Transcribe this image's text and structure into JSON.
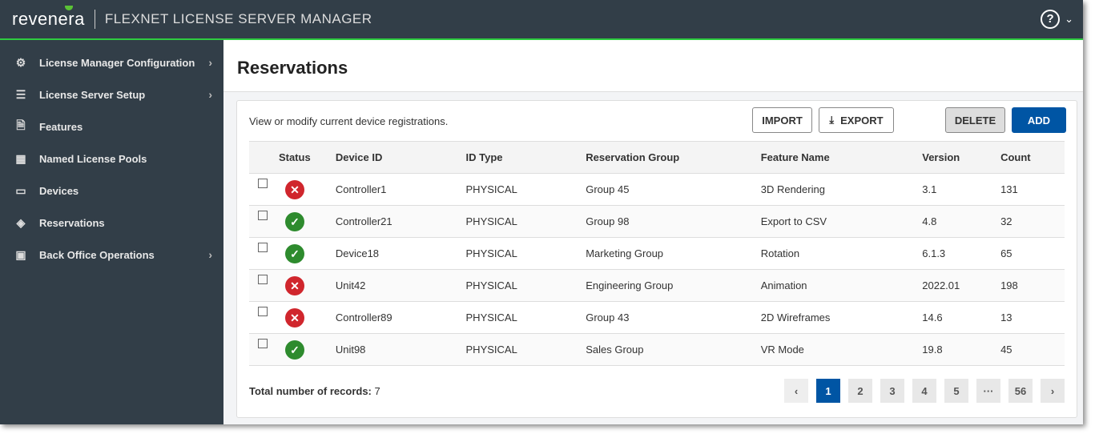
{
  "app": {
    "logo": "revenera",
    "title": "FLEXNET LICENSE SERVER MANAGER"
  },
  "sidebar": {
    "items": [
      {
        "label": "License Manager Configuration",
        "icon": "gear-icon",
        "glyph": "⚙",
        "chevron": true
      },
      {
        "label": "License Server Setup",
        "icon": "sliders-icon",
        "glyph": "☰",
        "chevron": true
      },
      {
        "label": "Features",
        "icon": "document-icon",
        "glyph": "🗎",
        "chevron": false
      },
      {
        "label": "Named License Pools",
        "icon": "grid-icon",
        "glyph": "▦",
        "chevron": false
      },
      {
        "label": "Devices",
        "icon": "monitor-icon",
        "glyph": "▭",
        "chevron": false
      },
      {
        "label": "Reservations",
        "icon": "layers-icon",
        "glyph": "◈",
        "chevron": false
      },
      {
        "label": "Back Office Operations",
        "icon": "server-icon",
        "glyph": "▣",
        "chevron": true
      }
    ]
  },
  "page": {
    "title": "Reservations",
    "description": "View or modify current device registrations."
  },
  "toolbar": {
    "import": "IMPORT",
    "export": "EXPORT",
    "delete": "DELETE",
    "add": "ADD"
  },
  "colors": {
    "accent": "#0055a4",
    "ok": "#2e8b2e",
    "error": "#d0262d",
    "topbar": "#323e48",
    "topbar_line": "#2ecc40"
  },
  "table": {
    "columns": [
      "Status",
      "Device ID",
      "ID Type",
      "Reservation Group",
      "Feature Name",
      "Version",
      "Count"
    ],
    "rows": [
      {
        "status": "error",
        "device": "Controller1",
        "type": "PHYSICAL",
        "group": "Group 45",
        "feature": "3D Rendering",
        "version": "3.1",
        "count": "131"
      },
      {
        "status": "ok",
        "device": "Controller21",
        "type": "PHYSICAL",
        "group": "Group 98",
        "feature": "Export to CSV",
        "version": "4.8",
        "count": "32"
      },
      {
        "status": "ok",
        "device": "Device18",
        "type": "PHYSICAL",
        "group": "Marketing Group",
        "feature": "Rotation",
        "version": "6.1.3",
        "count": "65"
      },
      {
        "status": "error",
        "device": "Unit42",
        "type": "PHYSICAL",
        "group": "Engineering Group",
        "feature": "Animation",
        "version": "2022.01",
        "count": "198"
      },
      {
        "status": "error",
        "device": "Controller89",
        "type": "PHYSICAL",
        "group": "Group 43",
        "feature": "2D Wireframes",
        "version": "14.6",
        "count": "13"
      },
      {
        "status": "ok",
        "device": "Unit98",
        "type": "PHYSICAL",
        "group": "Sales Group",
        "feature": "VR Mode",
        "version": "19.8",
        "count": "45"
      }
    ]
  },
  "footer": {
    "total_label": "Total number of records:",
    "total": "7"
  },
  "pagination": {
    "pages": [
      "1",
      "2",
      "3",
      "4",
      "5",
      "···",
      "56"
    ],
    "current": "1",
    "prev": "‹",
    "next": "›"
  }
}
